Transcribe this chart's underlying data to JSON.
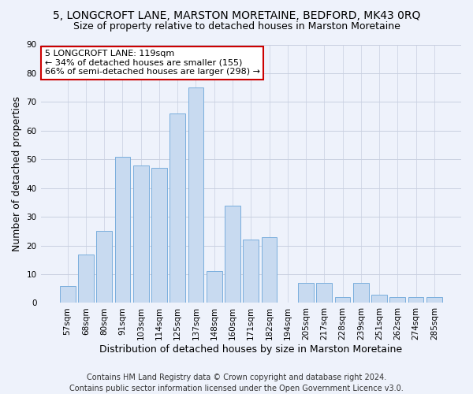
{
  "title": "5, LONGCROFT LANE, MARSTON MORETAINE, BEDFORD, MK43 0RQ",
  "subtitle": "Size of property relative to detached houses in Marston Moretaine",
  "xlabel": "Distribution of detached houses by size in Marston Moretaine",
  "ylabel": "Number of detached properties",
  "footer1": "Contains HM Land Registry data © Crown copyright and database right 2024.",
  "footer2": "Contains public sector information licensed under the Open Government Licence v3.0.",
  "categories": [
    "57sqm",
    "68sqm",
    "80sqm",
    "91sqm",
    "103sqm",
    "114sqm",
    "125sqm",
    "137sqm",
    "148sqm",
    "160sqm",
    "171sqm",
    "182sqm",
    "194sqm",
    "205sqm",
    "217sqm",
    "228sqm",
    "239sqm",
    "251sqm",
    "262sqm",
    "274sqm",
    "285sqm"
  ],
  "values": [
    6,
    17,
    25,
    51,
    48,
    47,
    66,
    75,
    11,
    34,
    22,
    23,
    0,
    7,
    7,
    2,
    7,
    3,
    2,
    2,
    2
  ],
  "bar_color": "#c8daf0",
  "bar_edge_color": "#7aaedd",
  "annotation_text": "5 LONGCROFT LANE: 119sqm\n← 34% of detached houses are smaller (155)\n66% of semi-detached houses are larger (298) →",
  "annotation_box_color": "white",
  "annotation_box_edge": "#cc0000",
  "ylim": [
    0,
    90
  ],
  "yticks": [
    0,
    10,
    20,
    30,
    40,
    50,
    60,
    70,
    80,
    90
  ],
  "background_color": "#eef2fb",
  "grid_color": "#c8cfe0",
  "title_fontsize": 10,
  "subtitle_fontsize": 9,
  "ylabel_fontsize": 9,
  "xlabel_fontsize": 9,
  "tick_fontsize": 7.5,
  "annotation_fontsize": 8,
  "footer_fontsize": 7
}
